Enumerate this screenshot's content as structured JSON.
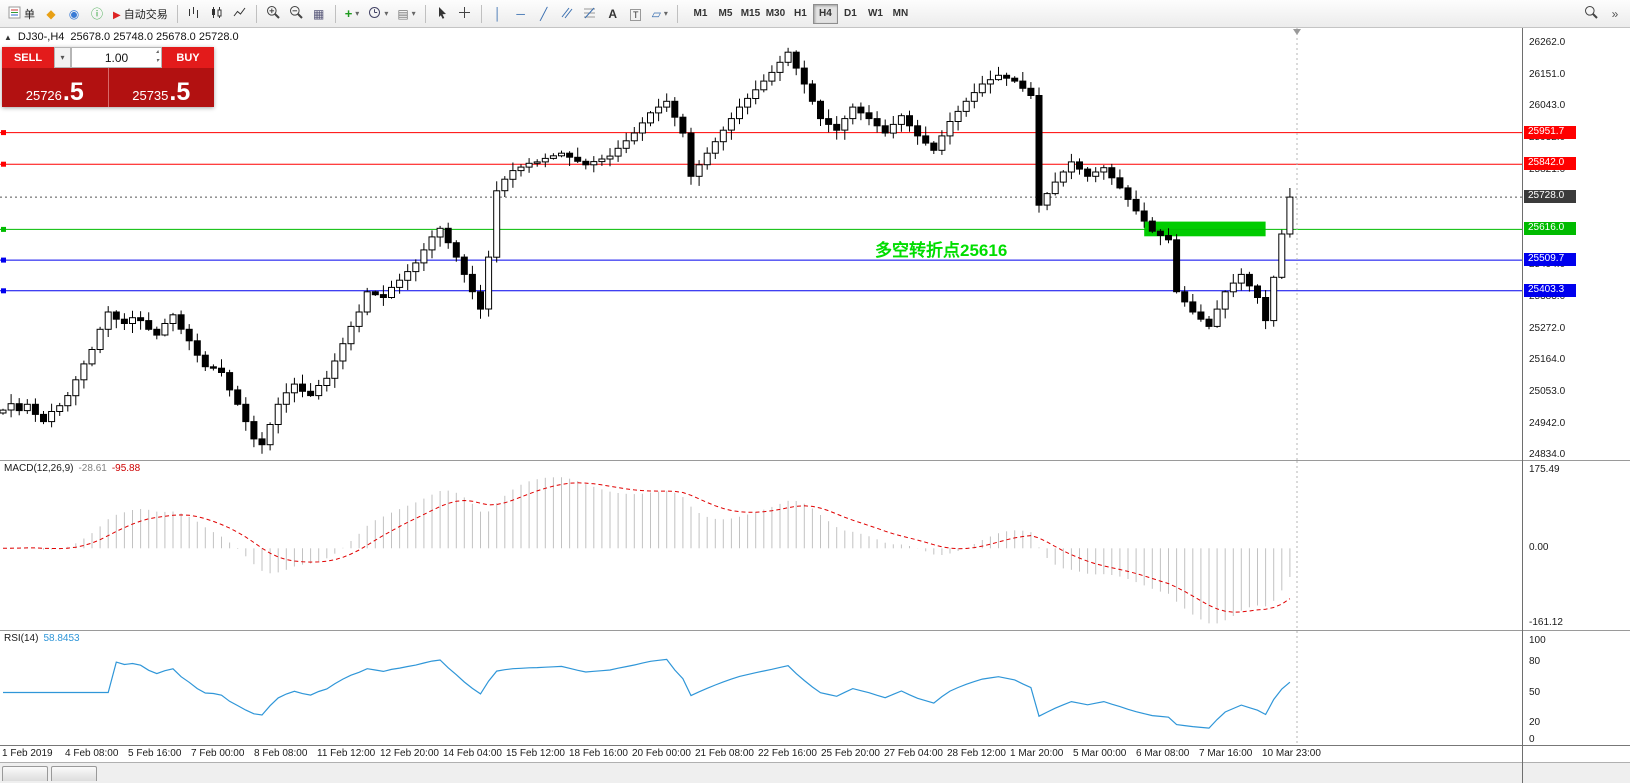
{
  "toolbar": {
    "buttons": [
      {
        "name": "new-order",
        "icon": "order-icon",
        "label": "单"
      },
      {
        "name": "quotes",
        "icon": "diamond-icon"
      },
      {
        "name": "profile",
        "icon": "profile-icon"
      },
      {
        "name": "market",
        "icon": "mql-icon"
      },
      {
        "name": "autotrade",
        "icon": "autotrade-icon",
        "label": "自动交易"
      },
      {
        "sep": true
      },
      {
        "name": "bar-chart",
        "icon": "bar-chart-icon"
      },
      {
        "name": "candle-chart",
        "icon": "candle-chart-icon"
      },
      {
        "name": "line-chart",
        "icon": "line-chart-icon"
      },
      {
        "sep": true
      },
      {
        "name": "zoom-in",
        "icon": "zoom-in-icon"
      },
      {
        "name": "zoom-out",
        "icon": "zoom-out-icon"
      },
      {
        "name": "tile-windows",
        "icon": "tile-windows-icon"
      },
      {
        "sep": true
      },
      {
        "name": "indicators",
        "icon": "indicators-icon",
        "dropdown": true
      },
      {
        "name": "periods",
        "icon": "periods-icon",
        "dropdown": true
      },
      {
        "name": "templates",
        "icon": "templates-icon",
        "dropdown": true
      },
      {
        "sep": true
      },
      {
        "name": "cursor",
        "icon": "cursor-icon"
      },
      {
        "name": "crosshair",
        "icon": "crosshair-icon"
      },
      {
        "sep": true
      },
      {
        "name": "vertical-line",
        "icon": "vline-icon"
      },
      {
        "name": "horizontal-line",
        "icon": "hline-icon"
      },
      {
        "name": "trendline",
        "icon": "trendline-icon"
      },
      {
        "name": "equidistant-channel",
        "icon": "channel-icon"
      },
      {
        "name": "fibonacci",
        "icon": "fibo-icon"
      },
      {
        "name": "text",
        "icon": "text-icon"
      },
      {
        "name": "text-label",
        "icon": "label-icon"
      },
      {
        "name": "arrows",
        "icon": "shapes-icon",
        "dropdown": true
      },
      {
        "sep": true
      }
    ],
    "timeframes": [
      "M1",
      "M5",
      "M15",
      "M30",
      "H1",
      "H4",
      "D1",
      "W1",
      "MN"
    ],
    "active_timeframe": "H4",
    "right_buttons": [
      {
        "name": "search",
        "icon": "search-icon"
      },
      {
        "name": "toolbar-overflow",
        "icon": "chevrons-icon"
      }
    ]
  },
  "symbol_bar": {
    "title": "DJ30-,H4",
    "ohlc": "25678.0 25748.0 25678.0 25728.0"
  },
  "trade_panel": {
    "sell_label": "SELL",
    "buy_label": "BUY",
    "lots": "1.00",
    "sell_price_small": "25726",
    "sell_price_big": ".5",
    "buy_price_small": "25735",
    "buy_price_big": ".5"
  },
  "macd_panel": {
    "label": "MACD(12,26,9)",
    "value_main": "-28.61",
    "value_signal": "-95.88",
    "axis_max": "175.49",
    "axis_zero": "0.00",
    "axis_min": "-161.12"
  },
  "rsi_panel": {
    "label": "RSI(14)",
    "value": "58.8453",
    "axis": [
      "100",
      "80",
      "50",
      "20",
      "0"
    ]
  },
  "chart_data": {
    "type": "candlestick",
    "symbol": "DJ30-",
    "timeframe": "H4",
    "ohlc_current": {
      "open": 25678.0,
      "high": 25748.0,
      "low": 25678.0,
      "close": 25728.0
    },
    "price_max": 26314,
    "price_min": 24817,
    "bars_area_width": 1295,
    "first_open": 24980,
    "closes": [
      24990,
      25012,
      24988,
      25010,
      24975,
      24950,
      24985,
      25005,
      25040,
      25095,
      25150,
      25200,
      25270,
      25330,
      25305,
      25290,
      25310,
      25300,
      25270,
      25250,
      25290,
      25320,
      25270,
      25230,
      25180,
      25140,
      25135,
      25120,
      25060,
      25010,
      24950,
      24890,
      24870,
      24940,
      25010,
      25050,
      25080,
      25055,
      25040,
      25075,
      25100,
      25160,
      25220,
      25280,
      25330,
      25400,
      25390,
      25380,
      25415,
      25440,
      25470,
      25500,
      25545,
      25590,
      25620,
      25570,
      25520,
      25460,
      25400,
      25340,
      25520,
      25750,
      25790,
      25820,
      25832,
      25845,
      25850,
      25862,
      25871,
      25880,
      25866,
      25852,
      25840,
      25851,
      25860,
      25870,
      25897,
      25923,
      25950,
      25985,
      26020,
      26040,
      26060,
      26005,
      25950,
      25800,
      25840,
      25880,
      25920,
      25960,
      26000,
      26040,
      26070,
      26100,
      26130,
      26160,
      26195,
      26230,
      26175,
      26120,
      26060,
      26000,
      25980,
      25960,
      26000,
      26040,
      26020,
      26000,
      25975,
      25950,
      25980,
      26010,
      25975,
      25940,
      25915,
      25890,
      25940,
      25990,
      26025,
      26060,
      26090,
      26120,
      26135,
      26150,
      26140,
      26130,
      26105,
      26080,
      25700,
      25740,
      25780,
      25815,
      25850,
      25825,
      25800,
      25815,
      25830,
      25795,
      25760,
      25720,
      25680,
      25645,
      25610,
      25595,
      25580,
      25400,
      25365,
      25330,
      25305,
      25280,
      25340,
      25400,
      25430,
      25460,
      25420,
      25380,
      25300,
      25450,
      25600,
      25728
    ],
    "y_ticks": [
      26262.0,
      26151.0,
      26043.0,
      25932.0,
      25821.0,
      25713.0,
      25602.0,
      25494.0,
      25383.0,
      25272.0,
      25164.0,
      25053.0,
      24942.0,
      24834.0
    ],
    "levels": [
      {
        "price": 25951.7,
        "color": "#FF0000",
        "label": "25951.7"
      },
      {
        "price": 25842.0,
        "color": "#FF0000",
        "label": "25842.0"
      },
      {
        "price": 25728.0,
        "color": "#555555",
        "label": "25728.0",
        "style": "current"
      },
      {
        "price": 25616.0,
        "color": "#00BB00",
        "label": "25616.0"
      },
      {
        "price": 25509.7,
        "color": "#0000EE",
        "label": "25509.7"
      },
      {
        "price": 25403.3,
        "color": "#0000EE",
        "label": "25403.3"
      }
    ],
    "highlight_zone": {
      "from_bar": 141,
      "to_bar": 156,
      "price_top": 25643,
      "price_bottom": 25592,
      "color": "#00CC00"
    },
    "annotation": {
      "text": "多空转折点25616",
      "x": 875,
      "y": 208,
      "color": "#00DD00"
    },
    "macd": {
      "fast": 12,
      "slow": 26,
      "signal": 9,
      "current_macd": -28.61,
      "current_signal": -95.88,
      "scale_max": 175.49,
      "scale_min": -161.12
    },
    "rsi": {
      "period": 14,
      "current": 58.8453
    },
    "time_labels": [
      "1 Feb 2019",
      "4 Feb 08:00",
      "5 Feb 16:00",
      "7 Feb 00:00",
      "8 Feb 08:00",
      "11 Feb 12:00",
      "12 Feb 20:00",
      "14 Feb 04:00",
      "15 Feb 12:00",
      "18 Feb 16:00",
      "20 Feb 00:00",
      "21 Feb 08:00",
      "22 Feb 16:00",
      "25 Feb 20:00",
      "27 Feb 04:00",
      "28 Feb 12:00",
      "1 Mar 20:00",
      "5 Mar 00:00",
      "6 Mar 08:00",
      "7 Mar 16:00",
      "10 Mar 23:00"
    ]
  }
}
